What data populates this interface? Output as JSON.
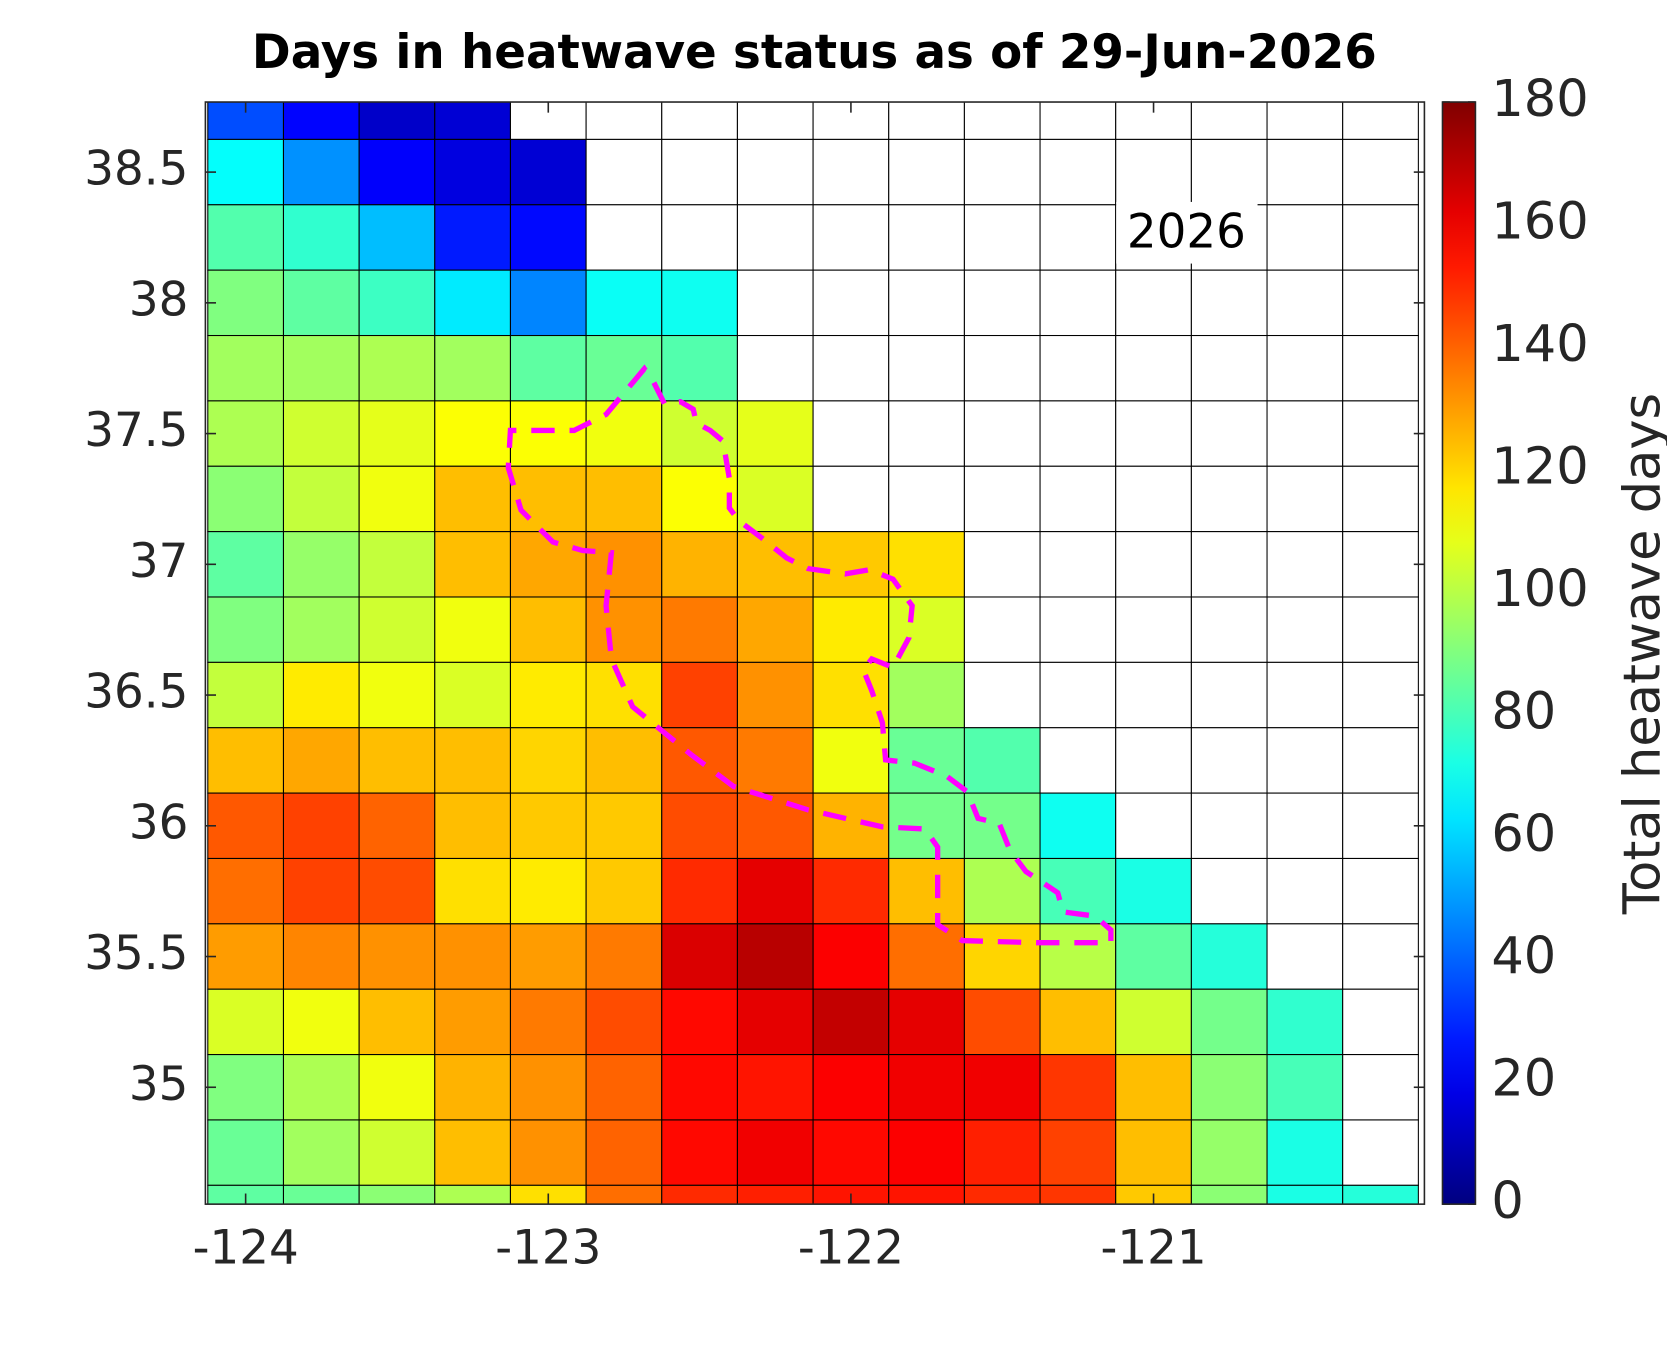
{
  "chart_data": {
    "type": "heatmap",
    "title": "Days in heatwave status as of 29-Jun-2026",
    "annotation": "2026",
    "colorbar_label": "Total heatwave days",
    "colormap": "jet",
    "grid": true,
    "x": [
      -124,
      -123.75,
      -123.5,
      -123.25,
      -123,
      -122.75,
      -122.5,
      -122.25,
      -122,
      -121.75,
      -121.5,
      -121.25,
      -121,
      -120.75,
      -120.5,
      -120.25
    ],
    "y": [
      38.75,
      38.5,
      38.25,
      38,
      37.75,
      37.5,
      37.25,
      37,
      36.75,
      36.5,
      36.25,
      36,
      35.75,
      35.5,
      35.25,
      35,
      34.75,
      34.5
    ],
    "z": [
      [
        36,
        23,
        13,
        15,
        null,
        null,
        null,
        null,
        null,
        null,
        null,
        null,
        null,
        null,
        null,
        null
      ],
      [
        68,
        48,
        22,
        17,
        15,
        null,
        null,
        null,
        null,
        null,
        null,
        null,
        null,
        null,
        null,
        null
      ],
      [
        82,
        76,
        56,
        27,
        24,
        null,
        null,
        null,
        null,
        null,
        null,
        null,
        null,
        null,
        null,
        null
      ],
      [
        90,
        84,
        78,
        64,
        46,
        69,
        70,
        null,
        null,
        null,
        null,
        null,
        null,
        null,
        null,
        null
      ],
      [
        96,
        96,
        98,
        96,
        84,
        86,
        82,
        null,
        null,
        null,
        null,
        null,
        null,
        null,
        null,
        null
      ],
      [
        98,
        104,
        108,
        112,
        112,
        110,
        104,
        108,
        null,
        null,
        null,
        null,
        null,
        null,
        null,
        null
      ],
      [
        92,
        102,
        110,
        124,
        124,
        124,
        112,
        106,
        null,
        null,
        null,
        null,
        null,
        null,
        null,
        null
      ],
      [
        84,
        94,
        102,
        124,
        128,
        132,
        126,
        124,
        122,
        118,
        null,
        null,
        null,
        null,
        null,
        null
      ],
      [
        90,
        96,
        104,
        110,
        124,
        132,
        136,
        128,
        116,
        106,
        null,
        null,
        null,
        null,
        null,
        null
      ],
      [
        102,
        116,
        110,
        106,
        116,
        118,
        146,
        132,
        118,
        96,
        null,
        null,
        null,
        null,
        null,
        null
      ],
      [
        124,
        128,
        124,
        124,
        120,
        124,
        142,
        136,
        110,
        86,
        82,
        null,
        null,
        null,
        null,
        null
      ],
      [
        142,
        146,
        140,
        124,
        122,
        122,
        144,
        142,
        126,
        88,
        88,
        70,
        null,
        null,
        null,
        null
      ],
      [
        138,
        146,
        144,
        118,
        116,
        122,
        150,
        162,
        150,
        124,
        98,
        80,
        72,
        null,
        null,
        null
      ],
      [
        130,
        134,
        132,
        132,
        130,
        136,
        164,
        170,
        158,
        138,
        120,
        100,
        84,
        74,
        null,
        null
      ],
      [
        106,
        110,
        124,
        130,
        136,
        144,
        156,
        162,
        168,
        162,
        144,
        124,
        104,
        88,
        76,
        null
      ],
      [
        90,
        98,
        110,
        126,
        132,
        140,
        156,
        154,
        158,
        160,
        160,
        148,
        124,
        92,
        80,
        null
      ],
      [
        86,
        96,
        104,
        124,
        132,
        140,
        156,
        160,
        156,
        158,
        152,
        146,
        124,
        94,
        72,
        null
      ],
      [
        84,
        86,
        92,
        98,
        118,
        138,
        150,
        152,
        154,
        154,
        150,
        148,
        122,
        92,
        72,
        74
      ]
    ],
    "xlim": [
      -124.133,
      -120.105
    ],
    "ylim": [
      34.553,
      38.768
    ],
    "xticks": [
      -124,
      -123,
      -122,
      -121
    ],
    "yticks": [
      35,
      35.5,
      36,
      36.5,
      37,
      37.5,
      38,
      38.5
    ],
    "clim": [
      0,
      180
    ],
    "cticks": [
      0,
      20,
      40,
      60,
      80,
      100,
      120,
      140,
      160,
      180
    ]
  }
}
